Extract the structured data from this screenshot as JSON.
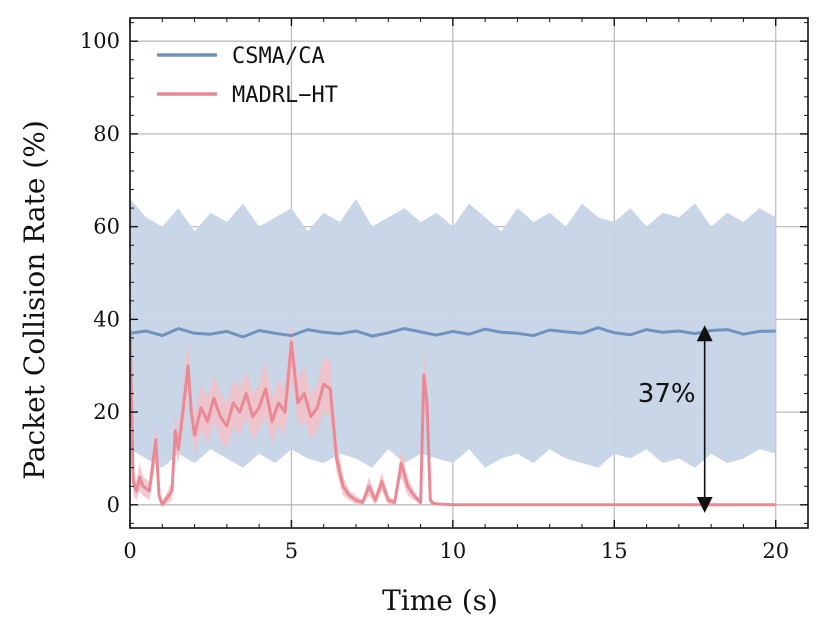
{
  "chart_data": {
    "type": "line",
    "title": "",
    "xlabel": "Time (s)",
    "ylabel": "Packet Collision Rate (%)",
    "xlim": [
      0,
      21
    ],
    "ylim": [
      -5,
      105
    ],
    "xticks": [
      0,
      5,
      10,
      15,
      20
    ],
    "yticks": [
      0,
      20,
      40,
      60,
      80,
      100
    ],
    "xtick_labels": [
      "0",
      "5",
      "10",
      "15",
      "20"
    ],
    "ytick_labels": [
      "0",
      "20",
      "40",
      "60",
      "80",
      "100"
    ],
    "grid": true,
    "legend_position": "top-left",
    "series": [
      {
        "name": "CSMA/CA",
        "color": "#6f93bf",
        "band_color": "#c5d4e6",
        "x": [
          0,
          0.5,
          1,
          1.5,
          2,
          2.5,
          3,
          3.5,
          4,
          4.5,
          5,
          5.5,
          6,
          6.5,
          7,
          7.5,
          8,
          8.5,
          9,
          9.5,
          10,
          10.5,
          11,
          11.5,
          12,
          12.5,
          13,
          13.5,
          14,
          14.5,
          15,
          15.5,
          16,
          16.5,
          17,
          17.5,
          18,
          18.5,
          19,
          19.5,
          20
        ],
        "values": [
          37,
          37.5,
          36.5,
          38,
          37,
          36.8,
          37.4,
          36.2,
          37.6,
          37,
          36.5,
          37.8,
          37.2,
          36.9,
          37.5,
          36.4,
          37.1,
          38,
          37.3,
          36.6,
          37.4,
          36.8,
          37.9,
          37.2,
          37,
          36.5,
          37.7,
          37.3,
          37,
          38.2,
          37.1,
          36.7,
          37.8,
          37.2,
          37.5,
          36.9,
          37.6,
          37.8,
          36.8,
          37.4,
          37.5
        ],
        "band_lower": [
          12,
          10,
          8,
          11,
          9,
          12,
          10,
          8,
          11,
          9,
          12,
          10,
          9,
          11,
          10,
          8,
          12,
          9,
          11,
          10,
          9,
          12,
          8,
          10,
          11,
          9,
          12,
          10,
          9,
          8,
          11,
          10,
          12,
          9,
          10,
          8,
          11,
          9,
          10,
          12,
          11
        ],
        "band_upper": [
          66,
          62,
          60,
          64,
          59,
          63,
          61,
          65,
          60,
          62,
          64,
          59,
          63,
          61,
          66,
          60,
          62,
          64,
          61,
          63,
          60,
          65,
          62,
          59,
          64,
          61,
          63,
          60,
          65,
          62,
          61,
          64,
          60,
          63,
          62,
          65,
          60,
          63,
          61,
          64,
          62
        ]
      },
      {
        "name": "MADRL−HT",
        "color": "#ea8996",
        "band_color": "#f3c0c7",
        "x": [
          0,
          0.1,
          0.2,
          0.3,
          0.4,
          0.6,
          0.8,
          0.9,
          1.0,
          1.1,
          1.3,
          1.4,
          1.5,
          1.6,
          1.8,
          1.9,
          2.0,
          2.2,
          2.4,
          2.6,
          2.8,
          3.0,
          3.2,
          3.4,
          3.6,
          3.8,
          4.0,
          4.2,
          4.4,
          4.6,
          4.8,
          5.0,
          5.2,
          5.4,
          5.6,
          5.8,
          6.0,
          6.2,
          6.4,
          6.6,
          6.8,
          7.0,
          7.2,
          7.4,
          7.6,
          7.8,
          8.0,
          8.2,
          8.4,
          8.6,
          8.8,
          9.0,
          9.1,
          9.2,
          9.3,
          9.4,
          9.5,
          10,
          11,
          12,
          13,
          14,
          15,
          16,
          17,
          18,
          19,
          20
        ],
        "values": [
          38,
          5,
          3,
          6,
          4,
          3,
          14,
          2,
          0,
          1,
          3,
          16,
          12,
          18,
          30,
          20,
          15,
          21,
          18,
          23,
          19,
          17,
          22,
          20,
          24,
          19,
          21,
          25,
          18,
          22,
          20,
          35,
          22,
          24,
          19,
          21,
          26,
          25,
          10,
          4,
          2,
          1,
          0.5,
          4,
          1,
          5,
          1,
          0.5,
          9,
          4,
          2,
          0.5,
          28,
          22,
          1,
          0.3,
          0.2,
          0,
          0,
          0,
          0,
          0,
          0,
          0,
          0,
          0,
          0,
          0
        ],
        "band_lower": [
          30,
          2,
          1,
          3,
          2,
          1,
          10,
          1,
          0,
          0,
          1,
          12,
          9,
          14,
          24,
          16,
          11,
          16,
          13,
          18,
          14,
          12,
          17,
          15,
          19,
          14,
          16,
          19,
          13,
          17,
          15,
          28,
          17,
          18,
          14,
          16,
          20,
          19,
          7,
          2,
          1,
          0,
          0,
          2,
          0,
          3,
          0,
          0,
          6,
          2,
          1,
          0,
          22,
          17,
          0,
          0,
          0,
          0,
          0,
          0,
          0,
          0,
          0,
          0,
          0,
          0,
          0,
          0
        ],
        "band_upper": [
          60,
          8,
          5,
          9,
          6,
          5,
          18,
          3,
          1,
          2,
          5,
          20,
          16,
          22,
          36,
          24,
          19,
          26,
          23,
          28,
          24,
          22,
          27,
          25,
          29,
          24,
          26,
          31,
          23,
          27,
          25,
          40,
          27,
          30,
          24,
          26,
          32,
          31,
          14,
          6,
          3,
          2,
          1,
          6,
          2,
          7,
          2,
          1,
          12,
          6,
          3,
          1,
          33,
          27,
          2,
          0.6,
          0.4,
          0,
          0,
          0,
          0,
          0,
          0,
          0,
          0,
          0,
          0,
          0
        ]
      }
    ],
    "annotations": [
      {
        "text": "37%",
        "arrow_x": 17.8,
        "arrow_from": 0,
        "arrow_to": 37
      }
    ]
  }
}
